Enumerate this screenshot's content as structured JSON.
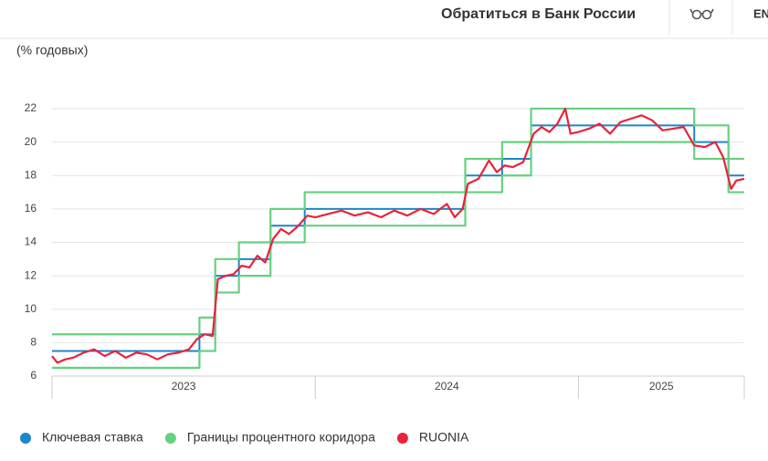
{
  "header": {
    "contact": "Обратиться в Банк России",
    "language": "EN"
  },
  "chart_data": {
    "type": "line",
    "y_label": "(% годовых)",
    "xlim": [
      2023,
      2025.63
    ],
    "ylim": [
      6,
      22
    ],
    "xticks": [
      {
        "value": 2023,
        "label": "2023"
      },
      {
        "value": 2024,
        "label": "2024"
      },
      {
        "value": 2025,
        "label": "2025"
      }
    ],
    "yticks": [
      6,
      8,
      10,
      12,
      14,
      16,
      18,
      20,
      22
    ],
    "grid": true,
    "series": [
      {
        "name": "Ключевая ставка",
        "color": "#1a87c9",
        "step": true,
        "x": [
          2023,
          2023.56,
          2023.62,
          2023.71,
          2023.83,
          2023.96,
          2024.57,
          2024.71,
          2024.82,
          2025.44,
          2025.57,
          2025.63
        ],
        "values": [
          7.5,
          8.5,
          12,
          13,
          15,
          16,
          18,
          19,
          21,
          20,
          18,
          18
        ]
      },
      {
        "name": "Границы процентного коридора",
        "color": "#66d17f",
        "step": true,
        "x": [
          2023,
          2023.56,
          2023.62,
          2023.71,
          2023.83,
          2023.96,
          2024.57,
          2024.71,
          2024.82,
          2025.44,
          2025.57,
          2025.63
        ],
        "upper": [
          8.5,
          9.5,
          13,
          14,
          16,
          17,
          19,
          20,
          22,
          21,
          19,
          19
        ],
        "lower": [
          6.5,
          7.5,
          11,
          12,
          14,
          15,
          17,
          18,
          20,
          19,
          17,
          17
        ]
      },
      {
        "name": "RUONIA",
        "color": "#e8233b",
        "step": false,
        "x": [
          2023.0,
          2023.02,
          2023.05,
          2023.08,
          2023.12,
          2023.16,
          2023.2,
          2023.24,
          2023.28,
          2023.32,
          2023.36,
          2023.4,
          2023.44,
          2023.48,
          2023.52,
          2023.55,
          2023.58,
          2023.61,
          2023.63,
          2023.66,
          2023.69,
          2023.72,
          2023.75,
          2023.78,
          2023.81,
          2023.84,
          2023.87,
          2023.9,
          2023.93,
          2023.97,
          2024.0,
          2024.05,
          2024.1,
          2024.15,
          2024.2,
          2024.25,
          2024.3,
          2024.35,
          2024.4,
          2024.45,
          2024.5,
          2024.53,
          2024.56,
          2024.58,
          2024.62,
          2024.66,
          2024.69,
          2024.72,
          2024.75,
          2024.79,
          2024.83,
          2024.86,
          2024.89,
          2024.92,
          2024.95,
          2024.97,
          2025.0,
          2025.04,
          2025.08,
          2025.12,
          2025.16,
          2025.2,
          2025.24,
          2025.28,
          2025.32,
          2025.36,
          2025.4,
          2025.44,
          2025.48,
          2025.52,
          2025.55,
          2025.58,
          2025.6,
          2025.63
        ],
        "values": [
          7.2,
          6.8,
          7.0,
          7.1,
          7.4,
          7.6,
          7.2,
          7.5,
          7.1,
          7.4,
          7.3,
          7.0,
          7.3,
          7.4,
          7.6,
          8.2,
          8.5,
          8.4,
          11.8,
          12.0,
          12.1,
          12.6,
          12.5,
          13.2,
          12.8,
          14.2,
          14.8,
          14.5,
          14.9,
          15.6,
          15.5,
          15.7,
          15.9,
          15.6,
          15.8,
          15.5,
          15.9,
          15.6,
          16.0,
          15.7,
          16.3,
          15.5,
          16.0,
          17.5,
          17.8,
          18.9,
          18.2,
          18.6,
          18.5,
          18.8,
          20.5,
          20.9,
          20.6,
          21.1,
          22.0,
          20.5,
          20.6,
          20.8,
          21.1,
          20.5,
          21.2,
          21.4,
          21.6,
          21.3,
          20.7,
          20.8,
          20.9,
          19.8,
          19.7,
          20.0,
          19.1,
          17.2,
          17.7,
          17.8
        ]
      }
    ]
  }
}
